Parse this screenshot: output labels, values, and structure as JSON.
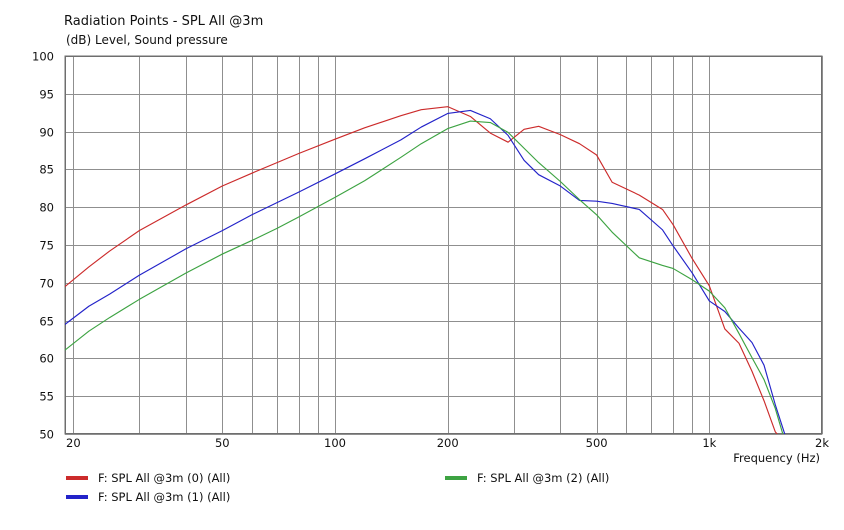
{
  "chart_data": {
    "type": "line",
    "title": "Radiation Points - SPL All @3m",
    "subtitle": "(dB)  Level, Sound pressure",
    "xlabel": "Frequency  (Hz)",
    "ylabel": "",
    "xscale": "log",
    "xlim": [
      19,
      2000
    ],
    "ylim": [
      50,
      100
    ],
    "y_ticks": [
      50,
      55,
      60,
      65,
      70,
      75,
      80,
      85,
      90,
      95,
      100
    ],
    "x_tick_labels": [
      {
        "value": 20,
        "label": "20"
      },
      {
        "value": 50,
        "label": "50"
      },
      {
        "value": 100,
        "label": "100"
      },
      {
        "value": 200,
        "label": "200"
      },
      {
        "value": 500,
        "label": "500"
      },
      {
        "value": 1000,
        "label": "1k"
      },
      {
        "value": 2000,
        "label": "2k"
      }
    ],
    "grid": true,
    "legend": "bottom",
    "series": [
      {
        "name": "F: SPL All @3m (0)  (All)",
        "color": "#cc2b2b",
        "x": [
          19,
          22,
          25,
          30,
          40,
          50,
          60,
          70,
          80,
          100,
          120,
          150,
          170,
          200,
          230,
          260,
          290,
          320,
          350,
          400,
          450,
          500,
          550,
          650,
          750,
          800,
          900,
          1000,
          1100,
          1200,
          1300,
          1400,
          1500,
          1600
        ],
        "y": [
          69.5,
          72.1,
          74.2,
          76.9,
          80.3,
          82.8,
          84.5,
          85.9,
          87.1,
          89.0,
          90.5,
          92.1,
          92.9,
          93.3,
          92.0,
          89.8,
          88.6,
          90.3,
          90.7,
          89.6,
          88.4,
          86.9,
          83.3,
          81.6,
          79.7,
          77.7,
          73.2,
          69.6,
          63.9,
          62.0,
          58.3,
          54.4,
          50.3,
          48.6
        ]
      },
      {
        "name": "F: SPL All @3m (1)  (All)",
        "color": "#2323c9",
        "x": [
          19,
          22,
          25,
          30,
          40,
          50,
          60,
          70,
          80,
          100,
          120,
          150,
          170,
          200,
          230,
          260,
          290,
          320,
          350,
          400,
          450,
          500,
          550,
          650,
          750,
          800,
          900,
          1000,
          1100,
          1200,
          1300,
          1400,
          1500,
          1600
        ],
        "y": [
          64.5,
          66.9,
          68.5,
          71.0,
          74.5,
          76.9,
          79.0,
          80.6,
          82.0,
          84.4,
          86.4,
          88.9,
          90.6,
          92.4,
          92.8,
          91.7,
          89.5,
          86.2,
          84.3,
          82.8,
          80.9,
          80.8,
          80.5,
          79.7,
          77.0,
          74.9,
          71.3,
          67.6,
          66.2,
          64.0,
          62.1,
          59.1,
          53.9,
          49.6
        ]
      },
      {
        "name": "F: SPL All @3m (2)  (All)",
        "color": "#3da342",
        "x": [
          19,
          22,
          25,
          30,
          40,
          50,
          60,
          70,
          80,
          100,
          120,
          150,
          170,
          200,
          230,
          260,
          290,
          320,
          350,
          400,
          450,
          500,
          550,
          650,
          750,
          800,
          900,
          1000,
          1100,
          1200,
          1300,
          1400,
          1500,
          1600
        ],
        "y": [
          61.1,
          63.6,
          65.4,
          67.8,
          71.3,
          73.8,
          75.6,
          77.2,
          78.7,
          81.3,
          83.5,
          86.6,
          88.4,
          90.4,
          91.4,
          91.2,
          89.9,
          87.8,
          85.9,
          83.4,
          81.0,
          79.0,
          76.7,
          73.3,
          72.3,
          71.9,
          70.4,
          68.9,
          66.7,
          63.3,
          60.1,
          57.2,
          53.4,
          48.7
        ]
      }
    ]
  }
}
